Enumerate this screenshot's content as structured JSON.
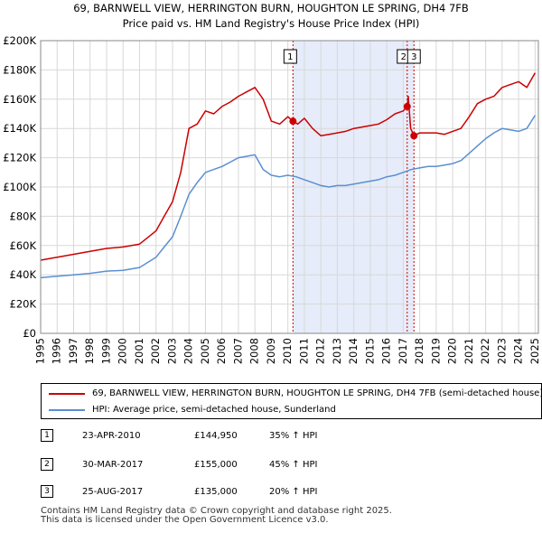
{
  "chart_data": {
    "type": "line",
    "title": "69, BARNWELL VIEW, HERRINGTON BURN, HOUGHTON LE SPRING, DH4 7FB",
    "subtitle": "Price paid vs. HM Land Registry's House Price Index (HPI)",
    "xlim": [
      1995,
      2025.2
    ],
    "ylim": [
      0,
      200000
    ],
    "x_ticks": [
      1995,
      1996,
      1997,
      1998,
      1999,
      2000,
      2001,
      2002,
      2003,
      2004,
      2005,
      2006,
      2007,
      2008,
      2009,
      2010,
      2011,
      2012,
      2013,
      2014,
      2015,
      2016,
      2017,
      2018,
      2019,
      2020,
      2021,
      2022,
      2023,
      2024,
      2025
    ],
    "y_ticks": [
      0,
      20000,
      40000,
      60000,
      80000,
      100000,
      120000,
      140000,
      160000,
      180000,
      200000
    ],
    "y_tick_labels": [
      "£0",
      "£20K",
      "£40K",
      "£60K",
      "£80K",
      "£100K",
      "£120K",
      "£140K",
      "£160K",
      "£180K",
      "£200K"
    ],
    "shaded_region": [
      2010.31,
      2017.65
    ],
    "series": [
      {
        "name": "69, BARNWELL VIEW, HERRINGTON BURN, HOUGHTON LE SPRING, DH4 7FB (semi-detached house)",
        "color": "#cc0000",
        "x": [
          1995,
          1996,
          1997,
          1998,
          1999,
          2000,
          2001,
          2002,
          2002.5,
          2003,
          2003.5,
          2004,
          2004.5,
          2005,
          2005.5,
          2006,
          2006.5,
          2007,
          2007.5,
          2008,
          2008.5,
          2009,
          2009.5,
          2010,
          2010.31,
          2010.6,
          2011,
          2011.5,
          2012,
          2012.5,
          2013,
          2013.5,
          2014,
          2014.5,
          2015,
          2015.5,
          2016,
          2016.5,
          2017,
          2017.24,
          2017.3,
          2017.45,
          2017.65,
          2018,
          2018.5,
          2019,
          2019.5,
          2020,
          2020.5,
          2021,
          2021.5,
          2022,
          2022.5,
          2023,
          2023.5,
          2024,
          2024.5,
          2025
        ],
        "y": [
          50000,
          52000,
          54000,
          56000,
          58000,
          59000,
          61000,
          70000,
          80000,
          90000,
          110000,
          140000,
          143000,
          152000,
          150000,
          155000,
          158000,
          162000,
          165000,
          168000,
          160000,
          145000,
          143000,
          148000,
          144950,
          143000,
          147000,
          140000,
          135000,
          136000,
          137000,
          138000,
          140000,
          141000,
          142000,
          143000,
          146000,
          150000,
          152000,
          155000,
          162000,
          140000,
          135000,
          137000,
          137000,
          137000,
          136000,
          138000,
          140000,
          148000,
          157000,
          160000,
          162000,
          168000,
          170000,
          172000,
          168000,
          178000
        ]
      },
      {
        "name": "HPI: Average price, semi-detached house, Sunderland",
        "color": "#5b8fd0",
        "x": [
          1995,
          1996,
          1997,
          1998,
          1999,
          2000,
          2001,
          2002,
          2002.5,
          2003,
          2003.5,
          2004,
          2004.5,
          2005,
          2005.5,
          2006,
          2006.5,
          2007,
          2007.5,
          2008,
          2008.5,
          2009,
          2009.5,
          2010,
          2010.5,
          2011,
          2011.5,
          2012,
          2012.5,
          2013,
          2013.5,
          2014,
          2014.5,
          2015,
          2015.5,
          2016,
          2016.5,
          2017,
          2017.5,
          2018,
          2018.5,
          2019,
          2019.5,
          2020,
          2020.5,
          2021,
          2021.5,
          2022,
          2022.5,
          2023,
          2023.5,
          2024,
          2024.5,
          2025
        ],
        "y": [
          38000,
          39000,
          40000,
          41000,
          42500,
          43000,
          45000,
          52000,
          59000,
          66000,
          80000,
          95000,
          103000,
          110000,
          112000,
          114000,
          117000,
          120000,
          121000,
          122000,
          112000,
          108000,
          107000,
          108000,
          107000,
          105000,
          103000,
          101000,
          100000,
          101000,
          101000,
          102000,
          103000,
          104000,
          105000,
          107000,
          108000,
          110000,
          112000,
          113000,
          114000,
          114000,
          115000,
          116000,
          118000,
          123000,
          128000,
          133000,
          137000,
          140000,
          139000,
          138000,
          140000,
          149000
        ]
      }
    ],
    "markers": [
      {
        "label": "1",
        "x": 2010.31,
        "y": 144950
      },
      {
        "label": "2",
        "x": 2017.24,
        "y": 155000
      },
      {
        "label": "3",
        "x": 2017.65,
        "y": 135000
      }
    ]
  },
  "legend": {
    "items": [
      {
        "label": "69, BARNWELL VIEW, HERRINGTON BURN, HOUGHTON LE SPRING, DH4 7FB (semi-detached house)",
        "color": "#cc0000"
      },
      {
        "label": "HPI: Average price, semi-detached house, Sunderland",
        "color": "#5b8fd0"
      }
    ]
  },
  "transactions": [
    {
      "num": "1",
      "date": "23-APR-2010",
      "price": "£144,950",
      "hpi": "35% ↑ HPI"
    },
    {
      "num": "2",
      "date": "30-MAR-2017",
      "price": "£155,000",
      "hpi": "45% ↑ HPI"
    },
    {
      "num": "3",
      "date": "25-AUG-2017",
      "price": "£135,000",
      "hpi": "20% ↑ HPI"
    }
  ],
  "footer": {
    "line1": "Contains HM Land Registry data © Crown copyright and database right 2025.",
    "line2": "This data is licensed under the Open Government Licence v3.0."
  }
}
